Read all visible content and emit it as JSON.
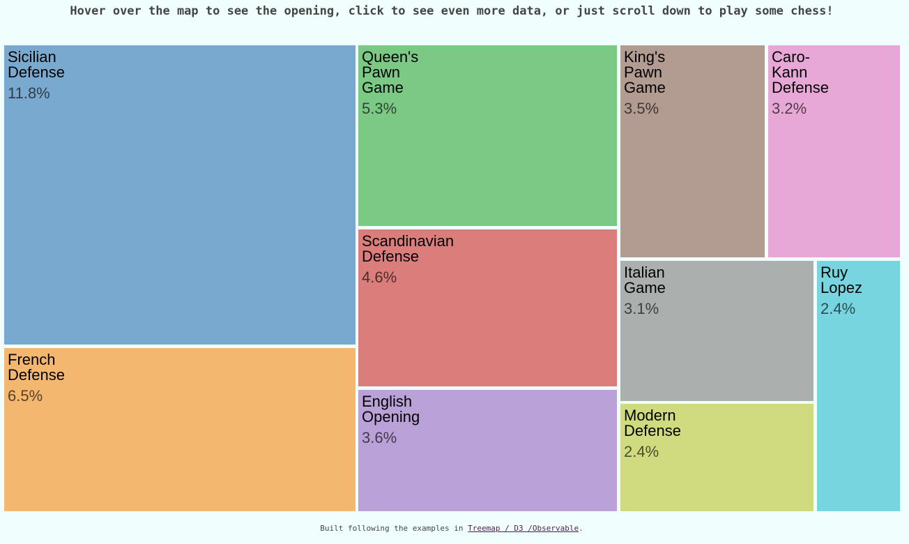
{
  "header": {
    "text": "Hover over the map to see the opening, click to see even more data, or just scroll down to play some chess!"
  },
  "chart_data": {
    "type": "treemap",
    "unit": "%",
    "items": [
      {
        "name": "Sicilian Defense",
        "label": "11.8%",
        "value": 11.8,
        "color": "#7aa9cf"
      },
      {
        "name": "French Defense",
        "label": "6.5%",
        "value": 6.5,
        "color": "#f4b770"
      },
      {
        "name": "Queen's Pawn Game",
        "label": "5.3%",
        "value": 5.3,
        "color": "#7cc885"
      },
      {
        "name": "Scandinavian Defense",
        "label": "4.6%",
        "value": 4.6,
        "color": "#db7e7b"
      },
      {
        "name": "English Opening",
        "label": "3.6%",
        "value": 3.6,
        "color": "#baa1d8"
      },
      {
        "name": "King's Pawn Game",
        "label": "3.5%",
        "value": 3.5,
        "color": "#b29b91"
      },
      {
        "name": "Caro-Kann Defense",
        "label": "3.2%",
        "value": 3.2,
        "color": "#e8a8d7"
      },
      {
        "name": "Italian Game",
        "label": "3.1%",
        "value": 3.1,
        "color": "#abb0af"
      },
      {
        "name": "Modern Defense",
        "label": "2.4%",
        "value": 2.4,
        "color": "#cfdb7e"
      },
      {
        "name": "Ruy Lopez",
        "label": "2.4%",
        "value": 2.4,
        "color": "#76d5df"
      }
    ]
  },
  "footer": {
    "prefix": "Built following the examples in ",
    "link_text": "Treemap / D3 /Observable",
    "suffix": "."
  }
}
